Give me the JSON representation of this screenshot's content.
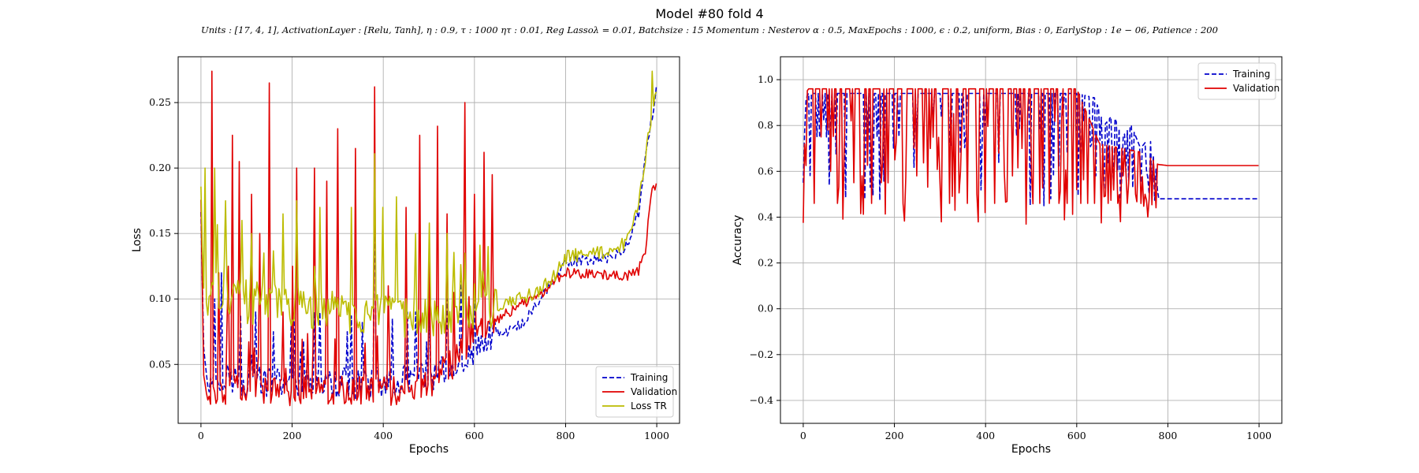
{
  "figure": {
    "title": "Model #80 fold 4",
    "subtitle": "Units : [17, 4, 1], ActivationLayer : [Relu, Tanh], η : 0.9, τ : 1000 ητ : 0.01, Reg Lassoλ = 0.01, Batchsize : 15 Momentum : Nesterov α : 0.5, MaxEpochs : 1000, ϵ : 0.2, uniform, Bias : 0, EarlyStop : 1e − 06, Patience : 200"
  },
  "chart_data": [
    {
      "type": "line",
      "id": "loss",
      "xlabel": "Epochs",
      "ylabel": "Loss",
      "xlim": [
        -50,
        1050
      ],
      "ylim": [
        0.005,
        0.285
      ],
      "xticks": [
        0,
        200,
        400,
        600,
        800,
        1000
      ],
      "yticks": [
        0.05,
        0.1,
        0.15,
        0.2,
        0.25
      ],
      "ytick_format": "2",
      "grid": true,
      "legend_position": "lower right",
      "series": [
        {
          "name": "Training",
          "color": "#0000cc",
          "style": "dashed",
          "x": [
            0,
            5,
            10,
            20,
            40,
            60,
            80,
            100,
            150,
            200,
            250,
            300,
            350,
            400,
            450,
            500,
            550,
            600,
            620,
            650,
            680,
            700,
            720,
            740,
            760,
            780,
            800,
            850,
            900,
            920,
            940,
            960,
            980,
            1000
          ],
          "y": [
            0.16,
            0.08,
            0.035,
            0.038,
            0.042,
            0.04,
            0.038,
            0.037,
            0.036,
            0.036,
            0.035,
            0.035,
            0.036,
            0.036,
            0.038,
            0.04,
            0.048,
            0.06,
            0.068,
            0.074,
            0.076,
            0.08,
            0.088,
            0.098,
            0.108,
            0.118,
            0.128,
            0.13,
            0.132,
            0.136,
            0.145,
            0.165,
            0.22,
            0.26
          ],
          "spikes": [
            [
              30,
              0.1
            ],
            [
              45,
              0.12
            ],
            [
              120,
              0.09
            ],
            [
              160,
              0.075
            ],
            [
              250,
              0.09
            ],
            [
              320,
              0.075
            ],
            [
              355,
              0.082
            ],
            [
              380,
              0.2
            ],
            [
              420,
              0.085
            ],
            [
              470,
              0.09
            ],
            [
              500,
              0.095
            ],
            [
              540,
              0.1
            ],
            [
              570,
              0.12
            ],
            [
              600,
              0.1
            ]
          ]
        },
        {
          "name": "Validation",
          "color": "#e00000",
          "style": "solid",
          "x": [
            0,
            5,
            10,
            20,
            40,
            60,
            80,
            100,
            150,
            200,
            250,
            300,
            350,
            400,
            450,
            500,
            550,
            600,
            650,
            700,
            750,
            780,
            800,
            850,
            900,
            940,
            960,
            975,
            990,
            1000
          ],
          "y": [
            0.18,
            0.05,
            0.028,
            0.03,
            0.03,
            0.032,
            0.03,
            0.03,
            0.03,
            0.03,
            0.03,
            0.03,
            0.03,
            0.03,
            0.03,
            0.035,
            0.05,
            0.072,
            0.085,
            0.095,
            0.105,
            0.115,
            0.12,
            0.119,
            0.118,
            0.118,
            0.122,
            0.138,
            0.185,
            0.186
          ],
          "spikes": [
            [
              25,
              0.274
            ],
            [
              40,
              0.12
            ],
            [
              60,
              0.125
            ],
            [
              70,
              0.225
            ],
            [
              85,
              0.205
            ],
            [
              110,
              0.18
            ],
            [
              130,
              0.15
            ],
            [
              150,
              0.265
            ],
            [
              180,
              0.09
            ],
            [
              200,
              0.125
            ],
            [
              210,
              0.2
            ],
            [
              250,
              0.2
            ],
            [
              275,
              0.19
            ],
            [
              300,
              0.23
            ],
            [
              340,
              0.215
            ],
            [
              380,
              0.262
            ],
            [
              410,
              0.11
            ],
            [
              450,
              0.17
            ],
            [
              480,
              0.225
            ],
            [
              500,
              0.138
            ],
            [
              520,
              0.232
            ],
            [
              540,
              0.165
            ],
            [
              555,
              0.105
            ],
            [
              580,
              0.25
            ],
            [
              600,
              0.18
            ],
            [
              620,
              0.212
            ],
            [
              640,
              0.195
            ]
          ]
        },
        {
          "name": "Loss TR",
          "color": "#bcbc00",
          "style": "solid",
          "x": [
            0,
            5,
            10,
            20,
            40,
            60,
            80,
            100,
            150,
            200,
            250,
            300,
            350,
            400,
            450,
            500,
            550,
            600,
            650,
            700,
            750,
            780,
            800,
            850,
            900,
            920,
            940,
            960,
            980,
            1000
          ],
          "y": [
            0.19,
            0.1,
            0.095,
            0.1,
            0.105,
            0.1,
            0.1,
            0.098,
            0.096,
            0.094,
            0.092,
            0.09,
            0.088,
            0.086,
            0.086,
            0.087,
            0.09,
            0.092,
            0.095,
            0.1,
            0.108,
            0.12,
            0.132,
            0.134,
            0.136,
            0.14,
            0.148,
            0.17,
            0.22,
            0.265
          ],
          "spikes": [
            [
              10,
              0.2
            ],
            [
              30,
              0.2
            ],
            [
              55,
              0.175
            ],
            [
              90,
              0.16
            ],
            [
              110,
              0.15
            ],
            [
              180,
              0.165
            ],
            [
              210,
              0.175
            ],
            [
              260,
              0.17
            ],
            [
              330,
              0.17
            ],
            [
              380,
              0.211
            ],
            [
              400,
              0.17
            ],
            [
              430,
              0.178
            ],
            [
              470,
              0.15
            ],
            [
              500,
              0.158
            ],
            [
              540,
              0.15
            ],
            [
              580,
              0.135
            ],
            [
              630,
              0.14
            ],
            [
              990,
              0.274
            ]
          ]
        }
      ]
    },
    {
      "type": "line",
      "id": "accuracy",
      "xlabel": "Epochs",
      "ylabel": "Accuracy",
      "xlim": [
        -50,
        1050
      ],
      "ylim": [
        -0.5,
        1.1
      ],
      "xticks": [
        0,
        200,
        400,
        600,
        800,
        1000
      ],
      "yticks": [
        -0.4,
        -0.2,
        0.0,
        0.2,
        0.4,
        0.6,
        0.8,
        1.0
      ],
      "ytick_format": "1",
      "grid": true,
      "legend_position": "upper right",
      "series": [
        {
          "name": "Training",
          "color": "#0000cc",
          "style": "dashed",
          "x": [
            0,
            2,
            5,
            10,
            100,
            200,
            300,
            400,
            500,
            600,
            640,
            660,
            680,
            700,
            720,
            740,
            760,
            775,
            778,
            800,
            900,
            1000
          ],
          "y": [
            0.55,
            0.7,
            0.9,
            0.94,
            0.94,
            0.94,
            0.94,
            0.94,
            0.94,
            0.94,
            0.92,
            0.8,
            0.85,
            0.75,
            0.8,
            0.7,
            0.75,
            0.6,
            0.48,
            0.48,
            0.48,
            0.48
          ],
          "spikes": [
            [
              60,
              0.8
            ],
            [
              140,
              0.78
            ],
            [
              210,
              0.75
            ],
            [
              320,
              0.72
            ],
            [
              400,
              0.8
            ],
            [
              520,
              0.78
            ],
            [
              660,
              0.52
            ],
            [
              700,
              0.58
            ],
            [
              740,
              0.55
            ],
            [
              760,
              0.5
            ]
          ]
        },
        {
          "name": "Validation",
          "color": "#e00000",
          "style": "solid",
          "x": [
            0,
            2,
            5,
            10,
            100,
            200,
            300,
            400,
            500,
            600,
            650,
            700,
            750,
            778,
            800,
            900,
            1000
          ],
          "y": [
            0.375,
            0.62,
            0.92,
            0.96,
            0.96,
            0.96,
            0.96,
            0.96,
            0.96,
            0.96,
            0.72,
            0.7,
            0.68,
            0.63,
            0.625,
            0.625,
            0.625
          ],
          "spikes": [
            [
              5,
              0.625
            ],
            [
              25,
              0.46
            ],
            [
              40,
              0.75
            ],
            [
              60,
              0.6
            ],
            [
              75,
              0.46
            ],
            [
              90,
              0.7
            ],
            [
              110,
              0.55
            ],
            [
              130,
              0.58
            ],
            [
              150,
              0.46
            ],
            [
              170,
              0.55
            ],
            [
              200,
              0.65
            ],
            [
              220,
              0.46
            ],
            [
              250,
              0.58
            ],
            [
              280,
              0.7
            ],
            [
              300,
              0.55
            ],
            [
              320,
              0.46
            ],
            [
              345,
              0.6
            ],
            [
              360,
              0.46
            ],
            [
              380,
              0.5
            ],
            [
              400,
              0.42
            ],
            [
              420,
              0.46
            ],
            [
              440,
              0.6
            ],
            [
              460,
              0.58
            ],
            [
              480,
              0.7
            ],
            [
              500,
              0.58
            ],
            [
              520,
              0.46
            ],
            [
              540,
              0.46
            ],
            [
              560,
              0.46
            ],
            [
              580,
              0.46
            ],
            [
              600,
              0.52
            ],
            [
              610,
              0.46
            ],
            [
              625,
              0.46
            ],
            [
              640,
              0.46
            ],
            [
              655,
              0.375
            ],
            [
              670,
              0.46
            ],
            [
              690,
              0.46
            ],
            [
              710,
              0.46
            ],
            [
              730,
              0.5
            ],
            [
              750,
              0.5
            ],
            [
              770,
              0.55
            ]
          ]
        }
      ]
    }
  ]
}
